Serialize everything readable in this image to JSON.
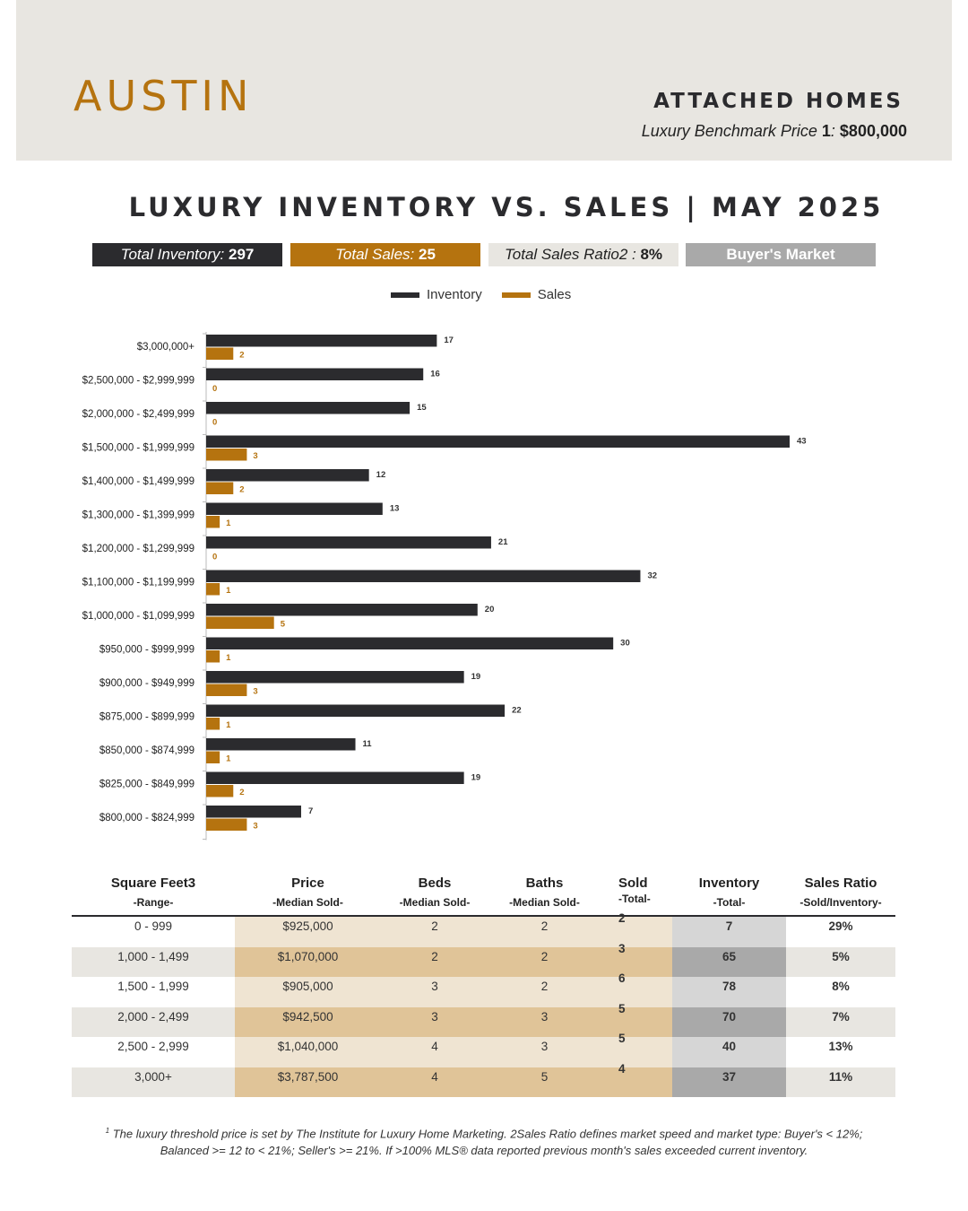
{
  "header": {
    "city": "AUSTIN",
    "home_type": "ATTACHED HOMES",
    "benchmark_label": "Luxury Benchmark Price",
    "benchmark_sup": "1",
    "benchmark_sep": ":",
    "benchmark_value": "$800,000"
  },
  "title": "LUXURY INVENTORY VS. SALES | MAY 2025",
  "stats": {
    "inventory_label": "Total Inventory:",
    "inventory_value": "297",
    "sales_label": "Total Sales:",
    "sales_value": "25",
    "ratio_label": "Total Sales Ratio2 :",
    "ratio_value": "8%",
    "market": "Buyer's Market"
  },
  "colors": {
    "inventory": "#2b2b2e",
    "sales": "#b5730f",
    "header_bg": "#e8e6e1",
    "market_bg": "#a9a9a9"
  },
  "chart_data": {
    "type": "bar",
    "orientation": "horizontal",
    "categories": [
      "$3,000,000+",
      "$2,500,000 - $2,999,999",
      "$2,000,000 - $2,499,999",
      "$1,500,000 - $1,999,999",
      "$1,400,000 - $1,499,999",
      "$1,300,000 - $1,399,999",
      "$1,200,000 - $1,299,999",
      "$1,100,000 - $1,199,999",
      "$1,000,000 - $1,099,999",
      "$950,000 - $999,999",
      "$900,000 - $949,999",
      "$875,000 - $899,999",
      "$850,000 - $874,999",
      "$825,000 - $849,999",
      "$800,000 - $824,999"
    ],
    "series": [
      {
        "name": "Inventory",
        "values": [
          17,
          16,
          15,
          43,
          12,
          13,
          21,
          32,
          20,
          30,
          19,
          22,
          11,
          19,
          7
        ]
      },
      {
        "name": "Sales",
        "values": [
          2,
          0,
          0,
          3,
          2,
          1,
          0,
          1,
          5,
          1,
          3,
          1,
          1,
          2,
          3
        ]
      }
    ],
    "xlim": [
      0,
      43
    ],
    "legend": "top-center",
    "grid": false
  },
  "table": {
    "headers": [
      {
        "h1": "Square Feet3",
        "h2": "-Range-"
      },
      {
        "h1": "Price",
        "h2": "-Median Sold-"
      },
      {
        "h1": "Beds",
        "h2": "-Median Sold-"
      },
      {
        "h1": "Baths",
        "h2": "-Median Sold-"
      },
      {
        "h1": "Sold",
        "h2": "-Total-"
      },
      {
        "h1": "Inventory",
        "h2": "-Total-"
      },
      {
        "h1": "Sales Ratio",
        "h2": "-Sold/Inventory-"
      }
    ],
    "rows": [
      [
        "0 - 999",
        "$925,000",
        "2",
        "2",
        "2",
        "7",
        "29%"
      ],
      [
        "1,000 - 1,499",
        "$1,070,000",
        "2",
        "2",
        "3",
        "65",
        "5%"
      ],
      [
        "1,500 - 1,999",
        "$905,000",
        "3",
        "2",
        "6",
        "78",
        "8%"
      ],
      [
        "2,000 - 2,499",
        "$942,500",
        "3",
        "3",
        "5",
        "70",
        "7%"
      ],
      [
        "2,500 - 2,999",
        "$1,040,000",
        "4",
        "3",
        "5",
        "40",
        "13%"
      ],
      [
        "3,000+",
        "$3,787,500",
        "4",
        "5",
        "4",
        "37",
        "11%"
      ]
    ]
  },
  "footnote": {
    "sup": "1",
    "line1": "The luxury threshold price is set by The Institute for Luxury Home Marketing. 2Sales Ratio defines market speed and market type: Buyer's < 12%;",
    "line2": "Balanced >= 12 to < 21%; Seller's >= 21%. If >100% MLS® data reported previous month's sales exceeded current inventory."
  }
}
